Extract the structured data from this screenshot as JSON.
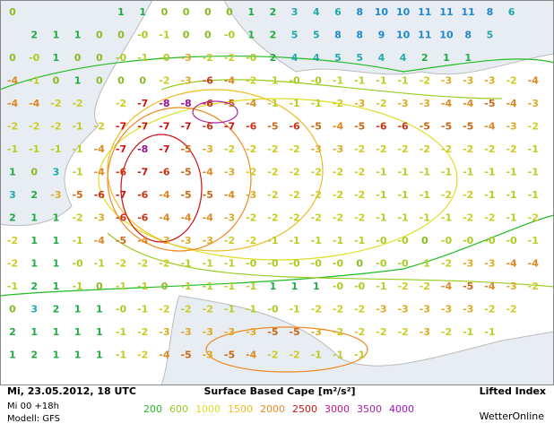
{
  "map": {
    "grid": [
      [
        "0",
        null,
        null,
        null,
        null,
        "1",
        "1",
        "0",
        "0",
        "0",
        "0",
        "1",
        "2",
        "3",
        "4",
        "6",
        "8",
        "10",
        "10",
        "11",
        "11",
        "11",
        "8",
        "6",
        null
      ],
      [
        null,
        "2",
        "1",
        "1",
        "0",
        "0",
        "-0",
        "-1",
        "0",
        "0",
        "-0",
        "1",
        "2",
        "5",
        "5",
        "8",
        "8",
        "9",
        "10",
        "11",
        "10",
        "8",
        "5",
        null,
        null
      ],
      [
        "0",
        "-0",
        "1",
        "0",
        "0",
        "-0",
        "-1",
        "-0",
        "-3",
        "-2",
        "-2",
        "-0",
        "2",
        "4",
        "4",
        "5",
        "5",
        "4",
        "4",
        "2",
        "1",
        "1",
        null,
        null,
        null
      ],
      [
        "-4",
        "-1",
        "0",
        "1",
        "0",
        "0",
        "0",
        "-2",
        "-3",
        "-6",
        "-4",
        "-2",
        "-1",
        "-0",
        "-0",
        "-1",
        "-1",
        "-1",
        "-1",
        "-2",
        "-3",
        "-3",
        "-3",
        "-2",
        "-4"
      ],
      [
        "-4",
        "-4",
        "-2",
        "-2",
        null,
        "-2",
        "-7",
        "-8",
        "-8",
        "-6",
        "-5",
        "-4",
        "-1",
        "-1",
        "-1",
        "-2",
        "-3",
        "-2",
        "-3",
        "-3",
        "-4",
        "-4",
        "-5",
        "-4",
        "-3"
      ],
      [
        "-2",
        "-2",
        "-2",
        "-1",
        "-2",
        "-7",
        "-7",
        "-7",
        "-7",
        "-6",
        "-7",
        "-6",
        "-5",
        "-6",
        "-5",
        "-4",
        "-5",
        "-6",
        "-6",
        "-5",
        "-5",
        "-5",
        "-4",
        "-3",
        "-2"
      ],
      [
        "-1",
        "-1",
        "-1",
        "-1",
        "-4",
        "-7",
        "-8",
        "-7",
        "-5",
        "-3",
        "-2",
        "-2",
        "-2",
        "-2",
        "-3",
        "-3",
        "-2",
        "-2",
        "-2",
        "-2",
        "-2",
        "-2",
        "-2",
        "-2",
        "-1"
      ],
      [
        "1",
        "0",
        "3",
        "-1",
        "-4",
        "-6",
        "-7",
        "-6",
        "-5",
        "-4",
        "-3",
        "-2",
        "-2",
        "-2",
        "-2",
        "-2",
        "-2",
        "-1",
        "-1",
        "-1",
        "-1",
        "-1",
        "-1",
        "-1",
        "-1"
      ],
      [
        "3",
        "2",
        "-3",
        "-5",
        "-6",
        "-7",
        "-6",
        "-4",
        "-5",
        "-5",
        "-4",
        "-3",
        "-2",
        "-2",
        "-2",
        "-2",
        "-2",
        "-1",
        "-1",
        "-1",
        "-2",
        "-2",
        "-1",
        "-1",
        "-1"
      ],
      [
        "2",
        "1",
        "1",
        "-2",
        "-3",
        "-6",
        "-6",
        "-4",
        "-4",
        "-4",
        "-3",
        "-2",
        "-2",
        "-2",
        "-2",
        "-2",
        "-2",
        "-1",
        "-1",
        "-1",
        "-1",
        "-2",
        "-2",
        "-1",
        "-2"
      ],
      [
        "-2",
        "1",
        "1",
        "-1",
        "-4",
        "-5",
        "-4",
        "-3",
        "-3",
        "-3",
        "-2",
        "-2",
        "-1",
        "-1",
        "-1",
        "-1",
        "-1",
        "-0",
        "-0",
        "0",
        "-0",
        "-0",
        "-0",
        "-0",
        "-1"
      ],
      [
        "-2",
        "1",
        "1",
        "-0",
        "-1",
        "-2",
        "-2",
        "-2",
        "-1",
        "-1",
        "-1",
        "-0",
        "-0",
        "-0",
        "-0",
        "-0",
        "0",
        "-0",
        "-0",
        "-1",
        "-2",
        "-3",
        "-3",
        "-4",
        "-4"
      ],
      [
        "-1",
        "2",
        "1",
        "-1",
        "0",
        "-1",
        "-1",
        "0",
        "-1",
        "-1",
        "-1",
        "-1",
        "1",
        "1",
        "1",
        "-0",
        "-0",
        "-1",
        "-2",
        "-2",
        "-4",
        "-5",
        "-4",
        "-3",
        "-2"
      ],
      [
        "0",
        "3",
        "2",
        "1",
        "1",
        "-0",
        "-1",
        "-2",
        "-2",
        "-2",
        "-1",
        "-1",
        "-0",
        "-1",
        "-2",
        "-2",
        "-2",
        "-3",
        "-3",
        "-3",
        "-3",
        "-3",
        "-2",
        "-2",
        null
      ],
      [
        "2",
        "1",
        "1",
        "1",
        "1",
        "-1",
        "-2",
        "-3",
        "-3",
        "-3",
        "-3",
        "-3",
        "-5",
        "-5",
        "-3",
        "-2",
        "-2",
        "-2",
        "-2",
        "-3",
        "-2",
        "-1",
        "-1",
        null,
        null
      ],
      [
        "1",
        "2",
        "1",
        "1",
        "1",
        "-1",
        "-2",
        "-4",
        "-5",
        "-3",
        "-5",
        "-4",
        "-2",
        "-2",
        "-1",
        "-1",
        "-1",
        null,
        null,
        null,
        null,
        null,
        null,
        null,
        null
      ]
    ]
  },
  "footer": {
    "date": "Mi, 23.05.2012, 18 UTC",
    "run": "Mi 00 +18h",
    "model": "Modell: GFS",
    "title": "Surface Based Cape [m²/s²]",
    "legend": [
      {
        "label": "200",
        "color": "#22bb22"
      },
      {
        "label": "600",
        "color": "#99cc22"
      },
      {
        "label": "1000",
        "color": "#dddd22"
      },
      {
        "label": "1500",
        "color": "#eebb22"
      },
      {
        "label": "2000",
        "color": "#ee8822"
      },
      {
        "label": "2500",
        "color": "#cc1111"
      },
      {
        "label": "3000",
        "color": "#bb1188"
      },
      {
        "label": "3500",
        "color": "#aa22aa"
      },
      {
        "label": "4000",
        "color": "#9911cc"
      }
    ],
    "product": "Lifted Index",
    "brand": "WetterOnline"
  }
}
